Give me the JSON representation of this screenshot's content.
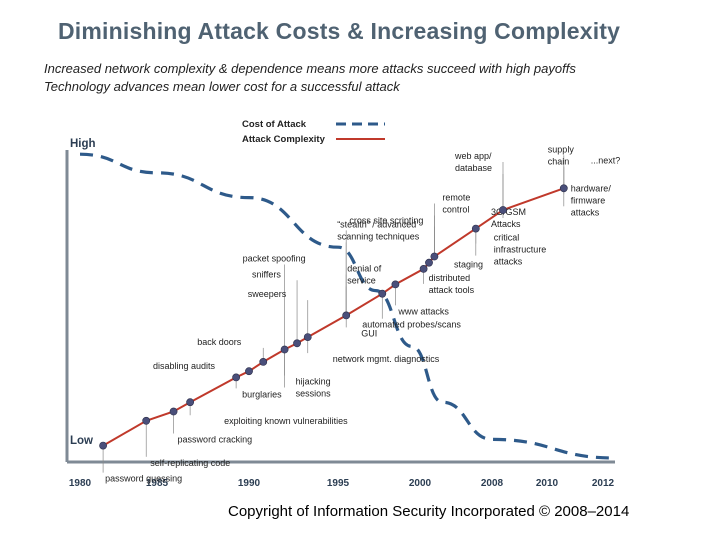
{
  "slide": {
    "title": "Diminishing Attack Costs & Increasing Complexity",
    "subtitle_lines": [
      "Increased network complexity & dependence means more attacks succeed with high  payoffs",
      "Technology advances mean lower cost for a successful attack"
    ],
    "copyright": "Copyright of Information Security Incorporated © 2008–2014"
  },
  "colors": {
    "title": "#4f6272",
    "cost_curve": "#2e5a8a",
    "complexity_line": "#c0392b",
    "markers": "#4a4f7a",
    "axis": "#7f8a95"
  },
  "chart_data": {
    "type": "line",
    "xlabel": "",
    "ylabel": "",
    "x_ticks": [
      1980,
      1985,
      1990,
      1995,
      2000,
      2008,
      2010,
      2012
    ],
    "y_labels": {
      "high": "High",
      "low": "Low"
    },
    "ylim": [
      0,
      1
    ],
    "legend": {
      "placement": "top-center",
      "entries": [
        "Cost of Attack",
        "Attack Complexity"
      ]
    },
    "series": [
      {
        "name": "Attack Complexity",
        "style": "solid",
        "points": [
          {
            "x": 1981.5,
            "y": 0.04
          },
          {
            "x": 1984.3,
            "y": 0.12
          },
          {
            "x": 1985.9,
            "y": 0.15
          },
          {
            "x": 1986.8,
            "y": 0.18
          },
          {
            "x": 1989.3,
            "y": 0.26
          },
          {
            "x": 1990.0,
            "y": 0.28
          },
          {
            "x": 1990.8,
            "y": 0.31
          },
          {
            "x": 1992.0,
            "y": 0.35
          },
          {
            "x": 1992.7,
            "y": 0.37
          },
          {
            "x": 1993.3,
            "y": 0.39
          },
          {
            "x": 1995.5,
            "y": 0.46
          },
          {
            "x": 1997.7,
            "y": 0.53
          },
          {
            "x": 1998.5,
            "y": 0.56
          },
          {
            "x": 2000.4,
            "y": 0.61
          },
          {
            "x": 2001.0,
            "y": 0.63
          },
          {
            "x": 2001.6,
            "y": 0.65
          },
          {
            "x": 2006.2,
            "y": 0.74
          },
          {
            "x": 2008.4,
            "y": 0.8
          },
          {
            "x": 2010.6,
            "y": 0.87
          }
        ]
      },
      {
        "name": "Cost of Attack",
        "style": "dashed",
        "points": [
          {
            "x": 1980.0,
            "y": 0.98
          },
          {
            "x": 1985.0,
            "y": 0.92
          },
          {
            "x": 1990.0,
            "y": 0.84
          },
          {
            "x": 1995.0,
            "y": 0.68
          },
          {
            "x": 1997.3,
            "y": 0.54
          },
          {
            "x": 1999.5,
            "y": 0.36
          },
          {
            "x": 2002.5,
            "y": 0.18
          },
          {
            "x": 2008.0,
            "y": 0.06
          },
          {
            "x": 2012.5,
            "y": 0.0
          }
        ]
      }
    ],
    "annotations": [
      {
        "text": "password guessing",
        "x": 1981.5,
        "y": 0.04,
        "dx": 2,
        "dy": 36
      },
      {
        "text": "self-replicating code",
        "x": 1984.3,
        "y": 0.12,
        "dx": 4,
        "dy": 45
      },
      {
        "text": "password cracking",
        "x": 1985.9,
        "y": 0.15,
        "dx": 4,
        "dy": 31
      },
      {
        "text": "exploiting known vulnerabilities",
        "x": 1986.8,
        "y": 0.18,
        "dx": 34,
        "dy": 22
      },
      {
        "text": "burglaries",
        "x": 1989.3,
        "y": 0.26,
        "dx": 6,
        "dy": 20
      },
      {
        "text": "disabling audits",
        "x": 1990.0,
        "y": 0.28,
        "dx": -96,
        "dy": -2
      },
      {
        "text": "back doors",
        "x": 1990.8,
        "y": 0.31,
        "dx": -66,
        "dy": -17
      },
      {
        "text": "packet spoofing",
        "x": 1992.0,
        "y": 0.35,
        "dx": -42,
        "dy": -88
      },
      {
        "text": "sniffers",
        "x": 1992.7,
        "y": 0.37,
        "dx": -45,
        "dy": -66
      },
      {
        "text": "sweepers",
        "x": 1993.3,
        "y": 0.39,
        "dx": -60,
        "dy": -40
      },
      {
        "text": "hijacking",
        "x": 1992.0,
        "y": 0.35,
        "dx": 11,
        "dy": 35
      },
      {
        "text": "sessions",
        "x": 1992.0,
        "y": 0.35,
        "dx": 11,
        "dy": 47
      },
      {
        "text": "network mgmt. diagnostics",
        "x": 1993.3,
        "y": 0.39,
        "dx": 25,
        "dy": 25
      },
      {
        "text": "GUI",
        "x": 1995.5,
        "y": 0.46,
        "dx": 15,
        "dy": 21
      },
      {
        "text": "denial of",
        "x": 1995.5,
        "y": 0.46,
        "dx": 1,
        "dy": -44
      },
      {
        "text": "service",
        "x": 1995.5,
        "y": 0.46,
        "dx": 1,
        "dy": -32
      },
      {
        "text": "“stealth” / advanced",
        "x": 1995.5,
        "y": 0.46,
        "dx": -9,
        "dy": -88
      },
      {
        "text": "scanning techniques",
        "x": 1995.5,
        "y": 0.46,
        "dx": -9,
        "dy": -76
      },
      {
        "text": "automated probes/scans",
        "x": 1997.7,
        "y": 0.53,
        "dx": -20,
        "dy": 34
      },
      {
        "text": "www attacks",
        "x": 1998.5,
        "y": 0.56,
        "dx": 3,
        "dy": 30
      },
      {
        "text": "distributed",
        "x": 2000.4,
        "y": 0.61,
        "dx": 5,
        "dy": 12
      },
      {
        "text": "attack tools",
        "x": 2000.4,
        "y": 0.61,
        "dx": 5,
        "dy": 24
      },
      {
        "text": "staging",
        "x": 2001.0,
        "y": 0.63,
        "dx": 25,
        "dy": 5
      },
      {
        "text": "cross site scripting",
        "x": 2001.6,
        "y": 0.65,
        "dx": -85,
        "dy": -33
      },
      {
        "text": "remote",
        "x": 2001.6,
        "y": 0.65,
        "dx": 8,
        "dy": -56
      },
      {
        "text": "control",
        "x": 2001.6,
        "y": 0.65,
        "dx": 8,
        "dy": -44
      },
      {
        "text": "critical",
        "x": 2006.2,
        "y": 0.74,
        "dx": 18,
        "dy": 12
      },
      {
        "text": "infrastructure",
        "x": 2006.2,
        "y": 0.74,
        "dx": 18,
        "dy": 24
      },
      {
        "text": "attacks",
        "x": 2006.2,
        "y": 0.74,
        "dx": 18,
        "dy": 36
      },
      {
        "text": "3G/GSM",
        "x": 2008.4,
        "y": 0.8,
        "dx": -12,
        "dy": 5
      },
      {
        "text": "Attacks",
        "x": 2008.4,
        "y": 0.8,
        "dx": -12,
        "dy": 17
      },
      {
        "text": "web app/",
        "x": 2008.4,
        "y": 0.8,
        "dx": -48,
        "dy": -51
      },
      {
        "text": "database",
        "x": 2008.4,
        "y": 0.8,
        "dx": -48,
        "dy": -39
      },
      {
        "text": "supply",
        "x": 2010.6,
        "y": 0.87,
        "dx": -16,
        "dy": -36
      },
      {
        "text": "chain",
        "x": 2010.6,
        "y": 0.87,
        "dx": -16,
        "dy": -24
      },
      {
        "text": "...next?",
        "x": 2010.6,
        "y": 0.87,
        "dx": 27,
        "dy": -25
      },
      {
        "text": "hardware/",
        "x": 2010.6,
        "y": 0.87,
        "dx": 7,
        "dy": 3
      },
      {
        "text": "firmware",
        "x": 2010.6,
        "y": 0.87,
        "dx": 7,
        "dy": 15
      },
      {
        "text": "attacks",
        "x": 2010.6,
        "y": 0.87,
        "dx": 7,
        "dy": 27
      }
    ]
  }
}
